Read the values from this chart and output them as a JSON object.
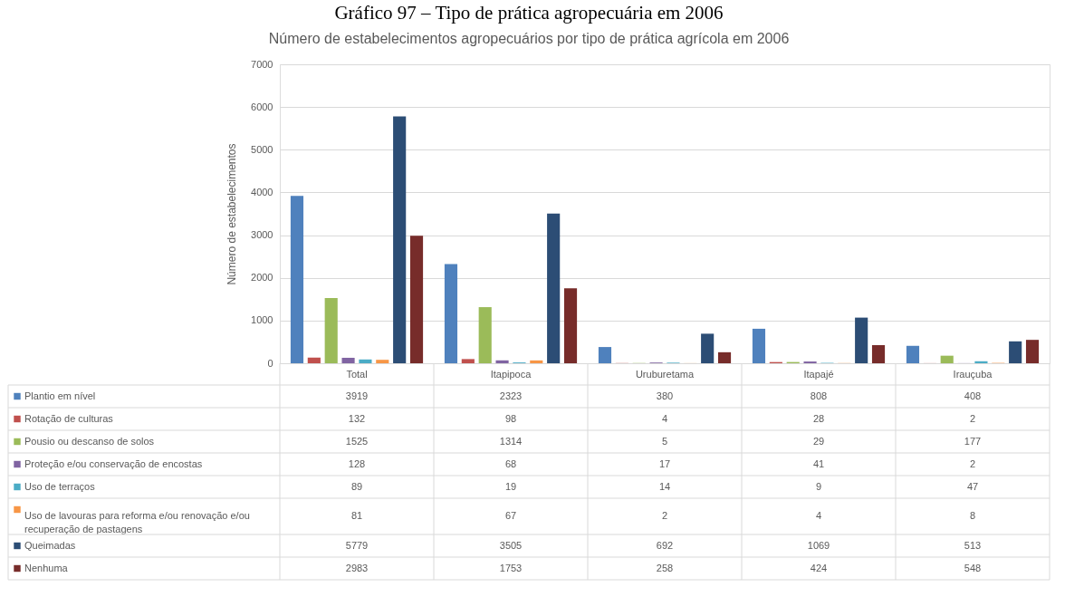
{
  "chart_data": {
    "type": "bar",
    "title": "Gráfico 97 – Tipo de prática agropecuária em 2006",
    "subtitle": "Número de estabelecimentos agropecuários por tipo de prática agrícola em 2006",
    "ylabel": "Número de estabelecimentos",
    "categories": [
      "Total",
      "Itapipoca",
      "Uruburetama",
      "Itapajé",
      "Irauçuba"
    ],
    "series": [
      {
        "name": "Plantio em nível",
        "color": "#4f81bd",
        "values": [
          3919,
          2323,
          380,
          808,
          408
        ]
      },
      {
        "name": "Rotação de culturas",
        "color": "#c0504d",
        "values": [
          132,
          98,
          4,
          28,
          2
        ]
      },
      {
        "name": "Pousio ou descanso de solos",
        "color": "#9bbb59",
        "values": [
          1525,
          1314,
          5,
          29,
          177
        ]
      },
      {
        "name": "Proteção e/ou conservação de encostas",
        "color": "#8064a2",
        "values": [
          128,
          68,
          17,
          41,
          2
        ]
      },
      {
        "name": "Uso de terraços",
        "color": "#4bacc6",
        "values": [
          89,
          19,
          14,
          9,
          47
        ]
      },
      {
        "name": "Uso de lavouras para reforma e/ou renovação e/ou recuperação de pastagens",
        "color": "#f79646",
        "values": [
          81,
          67,
          2,
          4,
          8
        ]
      },
      {
        "name": "Queimadas",
        "color": "#2c4d75",
        "values": [
          5779,
          3505,
          692,
          1069,
          513
        ]
      },
      {
        "name": "Nenhuma",
        "color": "#772c2a",
        "values": [
          2983,
          1753,
          258,
          424,
          548
        ]
      }
    ],
    "ylim": [
      0,
      7000
    ],
    "yticks": [
      0,
      1000,
      2000,
      3000,
      4000,
      5000,
      6000,
      7000
    ],
    "grid": "y",
    "legend": "bottom",
    "data_labels": true
  }
}
